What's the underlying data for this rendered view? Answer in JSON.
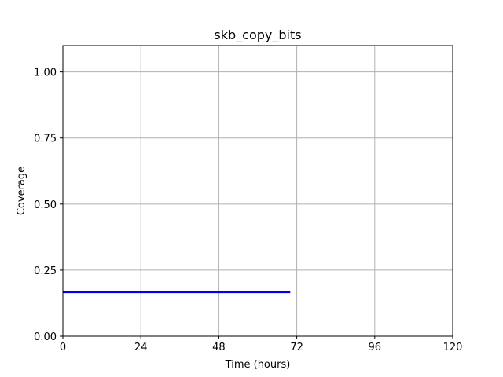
{
  "chart_data": {
    "type": "line",
    "title": "skb_copy_bits",
    "xlabel": "Time (hours)",
    "ylabel": "Coverage",
    "xlim": [
      0,
      120
    ],
    "ylim": [
      0,
      1.1
    ],
    "xticks": [
      0,
      24,
      48,
      72,
      96,
      120
    ],
    "xtick_labels": [
      "0",
      "24",
      "48",
      "72",
      "96",
      "120"
    ],
    "yticks": [
      0,
      0.25,
      0.5,
      0.75,
      1.0
    ],
    "ytick_labels": [
      "0.00",
      "0.25",
      "0.50",
      "0.75",
      "1.00"
    ],
    "grid": true,
    "series": [
      {
        "color": "#0000ee",
        "x": [
          0,
          70
        ],
        "y": [
          0.167,
          0.167
        ]
      }
    ]
  }
}
